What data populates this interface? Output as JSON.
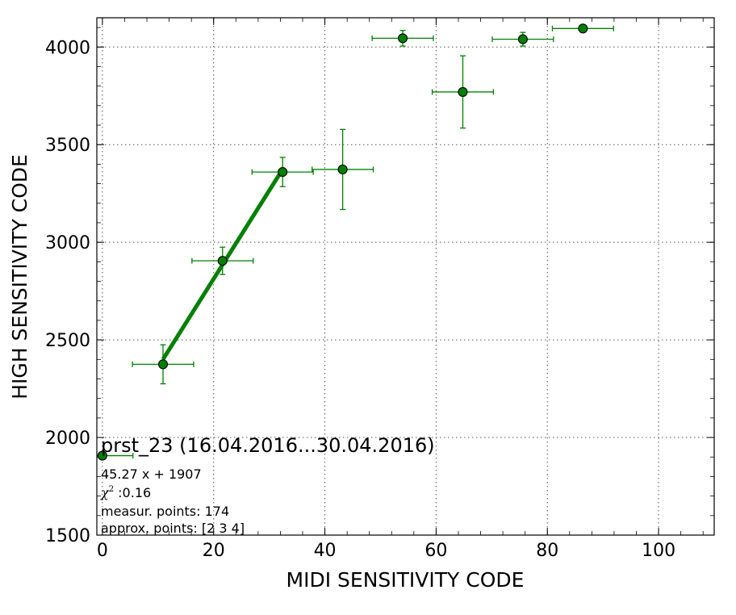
{
  "chart_data": {
    "type": "scatter",
    "xlabel": "MIDI SENSITIVITY CODE",
    "ylabel": "HIGH SENSITIVITY CODE",
    "xlim": [
      -1,
      110
    ],
    "ylim": [
      1500,
      4150
    ],
    "x_ticks": [
      0,
      20,
      40,
      60,
      80,
      100
    ],
    "y_ticks": [
      1500,
      2000,
      2500,
      3000,
      3500,
      4000
    ],
    "grid": true,
    "colors": {
      "series": "#008000",
      "marker_fill": "#008000",
      "marker_edge": "#000000",
      "grid": "#555555"
    },
    "series": [
      {
        "points": [
          {
            "x": 0,
            "y": 1907,
            "xerr": 5.5,
            "yerr": 0
          },
          {
            "x": 10.9,
            "y": 2375,
            "xerr": 5.5,
            "yerr": 100
          },
          {
            "x": 21.6,
            "y": 2905,
            "xerr": 5.5,
            "yerr": 70
          },
          {
            "x": 32.4,
            "y": 3360,
            "xerr": 5.5,
            "yerr": 75
          },
          {
            "x": 43.2,
            "y": 3373,
            "xerr": 5.5,
            "yerr": 205
          },
          {
            "x": 54.0,
            "y": 4045,
            "xerr": 5.5,
            "yerr": 40
          },
          {
            "x": 64.8,
            "y": 3770,
            "xerr": 5.5,
            "yerr": 185
          },
          {
            "x": 75.6,
            "y": 4040,
            "xerr": 5.5,
            "yerr": 35
          },
          {
            "x": 86.4,
            "y": 4095,
            "xerr": 5.5,
            "yerr": 0
          }
        ]
      }
    ],
    "fit": {
      "slope": 45.27,
      "intercept": 1907,
      "x_range": [
        10.9,
        32.4
      ]
    },
    "annotations": {
      "title": "prst_23 (16.04.2016...30.04.2016)",
      "equation": "45.27 x + 1907",
      "chi_symbol": "χ",
      "chi_sup": "2",
      "chi_value": " :0.16",
      "measured_points": "measur. points: 174",
      "approx_points": "approx. points: [2 3 4]"
    }
  }
}
